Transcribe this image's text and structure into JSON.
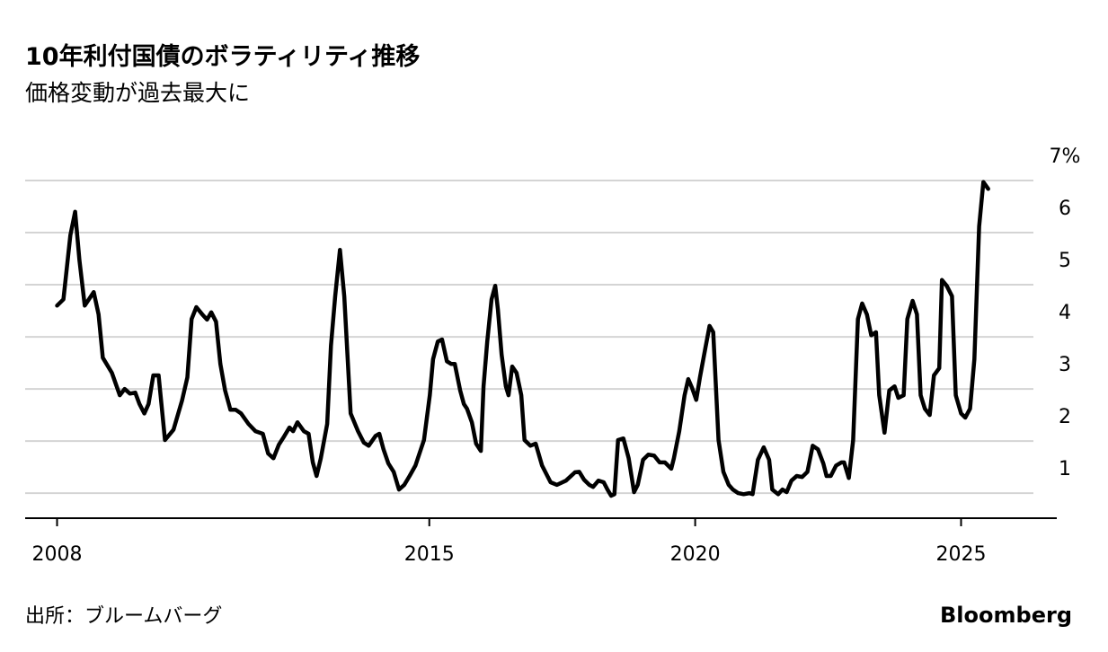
{
  "chart_data": {
    "type": "line",
    "title": "10年利付国債のボラティリティ推移",
    "subtitle": "価格変動が過去最大に",
    "source": "出所：ブルームバーグ",
    "brand": "Bloomberg",
    "xlim": [
      2007.4,
      2026.8
    ],
    "xticks": [
      2008,
      2015,
      2020,
      2025
    ],
    "ylim": [
      0.52,
      7
    ],
    "yticks": [
      1,
      2,
      3,
      4,
      5,
      6,
      {
        "value": 7,
        "label": "7%"
      }
    ],
    "grid": true,
    "x": [
      2008.0,
      2008.12,
      2008.25,
      2008.34,
      2008.42,
      2008.52,
      2008.69,
      2008.78,
      2008.86,
      2009.03,
      2009.18,
      2009.27,
      2009.37,
      2009.47,
      2009.55,
      2009.64,
      2009.72,
      2009.81,
      2009.91,
      2010.03,
      2010.19,
      2010.35,
      2010.45,
      2010.53,
      2010.62,
      2010.73,
      2010.82,
      2010.9,
      2010.99,
      2011.07,
      2011.16,
      2011.26,
      2011.36,
      2011.46,
      2011.6,
      2011.73,
      2011.87,
      2011.97,
      2012.07,
      2012.17,
      2012.27,
      2012.37,
      2012.44,
      2012.52,
      2012.64,
      2012.73,
      2012.81,
      2012.88,
      2012.96,
      2013.08,
      2013.15,
      2013.23,
      2013.32,
      2013.4,
      2013.52,
      2013.66,
      2013.77,
      2013.86,
      2013.99,
      2014.06,
      2014.14,
      2014.23,
      2014.33,
      2014.43,
      2014.53,
      2014.63,
      2014.74,
      2014.84,
      2014.9,
      2015.01,
      2015.07,
      2015.16,
      2015.24,
      2015.33,
      2015.41,
      2015.48,
      2015.58,
      2015.65,
      2015.71,
      2015.8,
      2015.88,
      2015.97,
      2016.02,
      2016.09,
      2016.17,
      2016.24,
      2016.29,
      2016.36,
      2016.44,
      2016.49,
      2016.56,
      2016.64,
      2016.73,
      2016.79,
      2016.9,
      2017.0,
      2017.12,
      2017.28,
      2017.4,
      2017.57,
      2017.74,
      2017.82,
      2017.91,
      2018.01,
      2018.08,
      2018.18,
      2018.28,
      2018.35,
      2018.42,
      2018.48,
      2018.55,
      2018.65,
      2018.75,
      2018.85,
      2018.92,
      2019.02,
      2019.12,
      2019.23,
      2019.33,
      2019.43,
      2019.55,
      2019.6,
      2019.7,
      2019.8,
      2019.87,
      2019.94,
      2020.02,
      2020.09,
      2020.19,
      2020.27,
      2020.34,
      2020.44,
      2020.53,
      2020.63,
      2020.71,
      2020.81,
      2020.91,
      2021.02,
      2021.08,
      2021.18,
      2021.29,
      2021.39,
      2021.45,
      2021.56,
      2021.64,
      2021.72,
      2021.81,
      2021.91,
      2022.01,
      2022.11,
      2022.21,
      2022.31,
      2022.41,
      2022.47,
      2022.55,
      2022.65,
      2022.75,
      2022.8,
      2022.89,
      2022.97,
      2023.06,
      2023.14,
      2023.23,
      2023.31,
      2023.4,
      2023.46,
      2023.56,
      2023.65,
      2023.75,
      2023.82,
      2023.92,
      2023.99,
      2024.09,
      2024.17,
      2024.24,
      2024.32,
      2024.41,
      2024.49,
      2024.59,
      2024.64,
      2024.73,
      2024.83,
      2024.9,
      2025.0,
      2025.08,
      2025.17,
      2025.25,
      2025.34,
      2025.42,
      2025.51
    ],
    "series": [
      {
        "color": "#000000",
        "values": [
          4.6,
          4.72,
          5.95,
          6.4,
          5.47,
          4.6,
          4.86,
          4.43,
          3.6,
          3.31,
          2.88,
          3.0,
          2.91,
          2.93,
          2.71,
          2.53,
          2.71,
          3.26,
          3.26,
          2.02,
          2.22,
          2.78,
          3.22,
          4.34,
          4.57,
          4.43,
          4.33,
          4.47,
          4.29,
          3.48,
          2.97,
          2.6,
          2.6,
          2.53,
          2.33,
          2.19,
          2.14,
          1.76,
          1.67,
          1.93,
          2.09,
          2.26,
          2.19,
          2.36,
          2.19,
          2.14,
          1.59,
          1.33,
          1.67,
          2.33,
          3.83,
          4.78,
          5.67,
          4.78,
          2.53,
          2.19,
          1.97,
          1.91,
          2.1,
          2.14,
          1.84,
          1.57,
          1.41,
          1.07,
          1.16,
          1.33,
          1.53,
          1.84,
          2.02,
          2.88,
          3.57,
          3.91,
          3.95,
          3.53,
          3.48,
          3.48,
          2.97,
          2.71,
          2.62,
          2.36,
          1.95,
          1.81,
          3.05,
          3.91,
          4.72,
          4.98,
          4.52,
          3.66,
          3.05,
          2.88,
          3.43,
          3.31,
          2.88,
          2.02,
          1.91,
          1.95,
          1.53,
          1.21,
          1.16,
          1.24,
          1.4,
          1.41,
          1.26,
          1.16,
          1.12,
          1.24,
          1.21,
          1.07,
          0.95,
          0.98,
          2.02,
          2.05,
          1.67,
          1.02,
          1.16,
          1.64,
          1.74,
          1.72,
          1.59,
          1.59,
          1.47,
          1.67,
          2.19,
          2.88,
          3.19,
          3.02,
          2.79,
          3.22,
          3.78,
          4.21,
          4.09,
          2.02,
          1.41,
          1.16,
          1.07,
          1.0,
          0.98,
          1.0,
          0.98,
          1.64,
          1.88,
          1.64,
          1.07,
          0.98,
          1.07,
          1.02,
          1.24,
          1.33,
          1.31,
          1.41,
          1.91,
          1.84,
          1.57,
          1.33,
          1.33,
          1.53,
          1.59,
          1.59,
          1.29,
          2.02,
          4.34,
          4.64,
          4.43,
          4.03,
          4.09,
          2.88,
          2.16,
          2.97,
          3.05,
          2.83,
          2.88,
          4.34,
          4.69,
          4.43,
          2.88,
          2.62,
          2.5,
          3.26,
          3.4,
          5.09,
          4.98,
          4.78,
          2.88,
          2.53,
          2.45,
          2.62,
          3.57,
          6.12,
          6.97,
          6.84
        ]
      }
    ]
  }
}
